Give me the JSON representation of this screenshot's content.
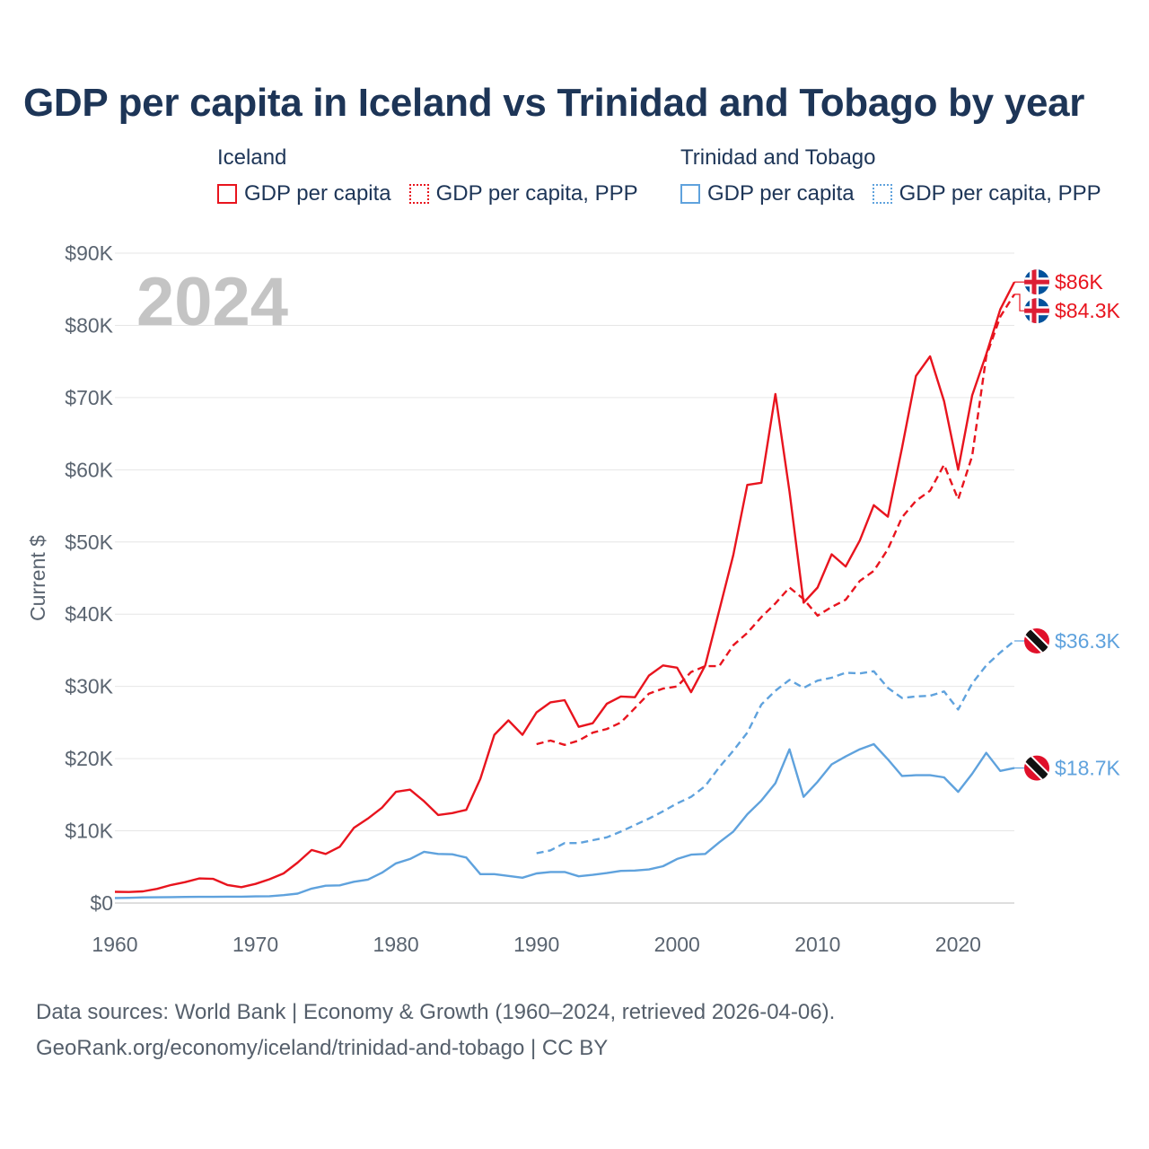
{
  "title": "GDP per capita in Iceland vs Trinidad and Tobago by year",
  "legend": {
    "groups": [
      {
        "name": "Iceland",
        "items": [
          "GDP per capita",
          "GDP per capita, PPP"
        ]
      },
      {
        "name": "Trinidad and Tobago",
        "items": [
          "GDP per capita",
          "GDP per capita, PPP"
        ]
      }
    ]
  },
  "colors": {
    "iceland": "#e8141e",
    "tt": "#5fa2dd",
    "title": "#1d3557",
    "axis_text": "#5a6470",
    "year_watermark": "#c4c4c4"
  },
  "year_watermark": "2024",
  "footer": {
    "line1": "Data sources: World Bank | Economy & Growth (1960–2024, retrieved 2026-04-06).",
    "line2": "GeoRank.org/economy/iceland/trinidad-and-tobago | CC BY"
  },
  "chart_data": {
    "type": "line",
    "title": "GDP per capita in Iceland vs Trinidad and Tobago by year",
    "ylabel": "Current $",
    "xlabel": "",
    "xlim": [
      1960,
      2024
    ],
    "ylim": [
      0,
      90000
    ],
    "x_ticks": [
      1960,
      1970,
      1980,
      1990,
      2000,
      2010,
      2020
    ],
    "x_tick_labels": [
      "1960",
      "1970",
      "1980",
      "1990",
      "2000",
      "2010",
      "2020"
    ],
    "y_ticks": [
      0,
      10000,
      20000,
      30000,
      40000,
      50000,
      60000,
      70000,
      80000,
      90000
    ],
    "y_tick_labels": [
      "$0",
      "$10K",
      "$20K",
      "$30K",
      "$40K",
      "$50K",
      "$60K",
      "$70K",
      "$80K",
      "$90K"
    ],
    "grid": true,
    "series": [
      {
        "name": "Iceland — GDP per capita",
        "country": "Iceland",
        "style": "solid",
        "color": "#e8141e",
        "start_year": 1960,
        "end_label": "$86K",
        "values": [
          1550,
          1530,
          1620,
          1960,
          2500,
          2900,
          3400,
          3350,
          2500,
          2200,
          2650,
          3300,
          4100,
          5600,
          7350,
          6800,
          7800,
          10400,
          11700,
          13200,
          15400,
          15700,
          14100,
          12200,
          12450,
          12900,
          17200,
          23300,
          25300,
          23300,
          26400,
          27800,
          28100,
          24400,
          24900,
          27600,
          28600,
          28500,
          31500,
          32900,
          32600,
          29200,
          32900,
          40500,
          48200,
          57900,
          58200,
          70500,
          57000,
          41600,
          43700,
          48300,
          46600,
          50200,
          55100,
          53500,
          63000,
          73000,
          75700,
          69500,
          60000,
          70300,
          76000,
          82200,
          86000
        ]
      },
      {
        "name": "Iceland — GDP per capita, PPP",
        "country": "Iceland",
        "style": "dashed",
        "color": "#e8141e",
        "start_year": 1990,
        "end_label": "$84.3K",
        "values": [
          22000,
          22500,
          21900,
          22500,
          23600,
          24100,
          25000,
          27000,
          29000,
          29700,
          30000,
          32000,
          32800,
          32800,
          35700,
          37400,
          39600,
          41500,
          43700,
          42100,
          39800,
          41000,
          42000,
          44600,
          46000,
          49000,
          53400,
          55700,
          57100,
          60700,
          55900,
          61900,
          75700,
          81200,
          84300
        ]
      },
      {
        "name": "Trinidad and Tobago — GDP per capita",
        "country": "Trinidad and Tobago",
        "style": "solid",
        "color": "#5fa2dd",
        "start_year": 1960,
        "end_label": "$18.7K",
        "values": [
          700,
          720,
          780,
          800,
          820,
          840,
          860,
          860,
          880,
          880,
          920,
          950,
          1100,
          1300,
          2000,
          2400,
          2450,
          2950,
          3250,
          4200,
          5500,
          6100,
          7100,
          6800,
          6750,
          6300,
          4000,
          4000,
          3750,
          3500,
          4100,
          4300,
          4300,
          3700,
          3900,
          4150,
          4450,
          4500,
          4650,
          5100,
          6100,
          6700,
          6800,
          8400,
          9900,
          12300,
          14200,
          16600,
          21300,
          14700,
          16800,
          19200,
          20300,
          21300,
          22000,
          19900,
          17600,
          17700,
          17700,
          17400,
          15400,
          17900,
          20800,
          18300,
          18700
        ]
      },
      {
        "name": "Trinidad and Tobago — GDP per capita, PPP",
        "country": "Trinidad and Tobago",
        "style": "dashed",
        "color": "#5fa2dd",
        "start_year": 1990,
        "end_label": "$36.3K",
        "values": [
          6900,
          7300,
          8300,
          8300,
          8700,
          9100,
          9900,
          10800,
          11700,
          12700,
          13800,
          14700,
          16200,
          18800,
          21100,
          23600,
          27500,
          29400,
          30900,
          29800,
          30800,
          31200,
          31900,
          31800,
          32100,
          29800,
          28400,
          28600,
          28700,
          29300,
          26800,
          30400,
          32900,
          34700,
          36300
        ]
      }
    ]
  }
}
